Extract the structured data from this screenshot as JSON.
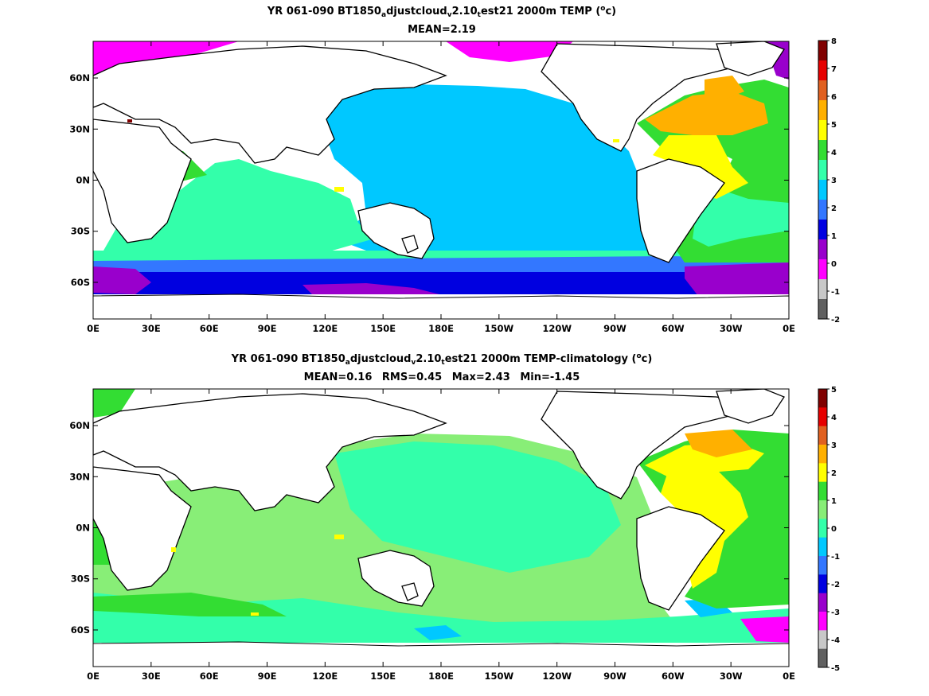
{
  "panels": [
    {
      "title_pre": "YR 061-090 BT1850",
      "sub_a": "a",
      "title_mid1": "djustcloud",
      "sub_v": "v",
      "title_mid2": "2.10",
      "sub_t": "t",
      "title_post": "est21 2000m TEMP (",
      "deg": "o",
      "unit_post": "c)",
      "stats": [
        "MEAN=2.19"
      ],
      "colorbar_labels": [
        "8",
        "7",
        "6",
        "5",
        "4",
        "3",
        "2",
        "1",
        "0",
        "-1",
        "-2"
      ],
      "colorbar_colors": [
        "#800000",
        "#e60000",
        "#e06020",
        "#ffb000",
        "#ffff00",
        "#33dd33",
        "#33ffaa",
        "#00c8ff",
        "#3377ff",
        "#0000e0",
        "#9900cc",
        "#ff00ff",
        "#c8c8c8",
        "#606060"
      ]
    },
    {
      "title_pre": "YR 061-090 BT1850",
      "sub_a": "a",
      "title_mid1": "djustcloud",
      "sub_v": "v",
      "title_mid2": "2.10",
      "sub_t": "t",
      "title_post": "est21 2000m TEMP-climatology (",
      "deg": "o",
      "unit_post": "c)",
      "stats": [
        "MEAN=0.16",
        "RMS=0.45",
        "Max=2.43",
        "Min=-1.45"
      ],
      "colorbar_labels": [
        "5",
        "4",
        "3",
        "2",
        "1",
        "0",
        "-1",
        "-2",
        "-3",
        "-4",
        "-5"
      ],
      "colorbar_colors": [
        "#800000",
        "#e60000",
        "#e06020",
        "#ffb000",
        "#ffff00",
        "#33dd33",
        "#88ee77",
        "#33ffaa",
        "#00c8ff",
        "#3377ff",
        "#0000e0",
        "#9900cc",
        "#ff00ff",
        "#c8c8c8",
        "#606060"
      ]
    }
  ],
  "x_ticks": [
    "0E",
    "30E",
    "60E",
    "90E",
    "120E",
    "150E",
    "180E",
    "150W",
    "120W",
    "90W",
    "60W",
    "30W",
    "0E"
  ],
  "y_ticks": [
    "60N",
    "30N",
    "0N",
    "30S",
    "60S"
  ]
}
